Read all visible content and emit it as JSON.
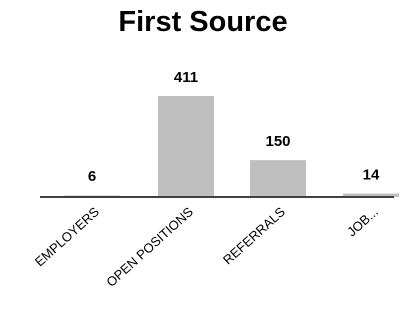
{
  "chart_data": {
    "type": "bar",
    "title": "First Source",
    "categories": [
      "EMPLOYERS",
      "OPEN POSITIONS",
      "REFERRALS",
      "JOB..."
    ],
    "values": [
      6,
      411,
      150,
      14
    ],
    "data_labels": [
      "6",
      "411",
      "150",
      "14"
    ],
    "xlabel": "",
    "ylabel": "",
    "ylim": [
      0,
      420
    ],
    "grid": false,
    "bar_color": "#bfbfbf",
    "axis_color": "#404040"
  }
}
